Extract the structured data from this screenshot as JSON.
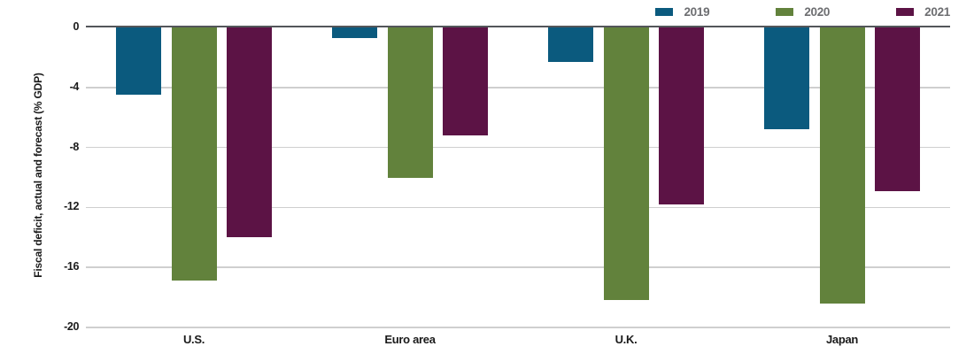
{
  "chart_data": {
    "type": "bar",
    "title": "",
    "ylabel": "Fiscal deficit, actual and forecast (% GDP)",
    "xlabel": "",
    "categories": [
      "U.S.",
      "Euro area",
      "U.K.",
      "Japan"
    ],
    "series": [
      {
        "name": "2019",
        "color": "#0b5a7e",
        "values": [
          -4.5,
          -0.7,
          -2.3,
          -6.8
        ]
      },
      {
        "name": "2020",
        "color": "#62823c",
        "values": [
          -16.9,
          -10.0,
          -18.2,
          -18.4
        ]
      },
      {
        "name": "2021",
        "color": "#5c1345",
        "values": [
          -14.0,
          -7.2,
          -11.8,
          -10.9
        ]
      }
    ],
    "ylim": [
      -20,
      0
    ],
    "yticks": [
      0,
      -4,
      -8,
      -12,
      -16,
      -20
    ],
    "grid": "horizontal",
    "legend_position": "top-right"
  },
  "colors": {
    "background": "#ffffff",
    "zero_line": "#53565a",
    "gridline": "#cfcfcf",
    "tick_text": "#1a1a1a",
    "category_text": "#1a1a1a",
    "legend_text": "#6d6e71"
  }
}
